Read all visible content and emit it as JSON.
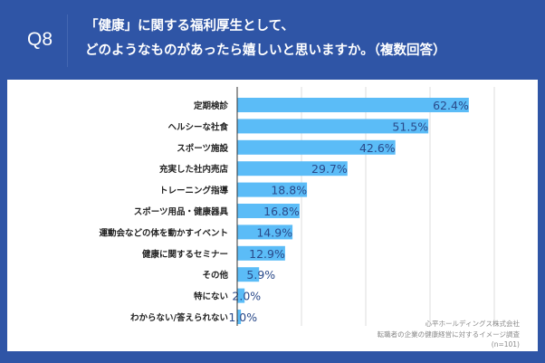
{
  "header": {
    "question_no": "Q8",
    "title_line1": "「健康」に関する福利厚生として、",
    "title_line2": "どのようなものがあったら嬉しいと思いますか。（複数回答）"
  },
  "colors": {
    "background": "#2f55a6",
    "bar": "#5bbcf7",
    "value_text": "#2a4a8a"
  },
  "source": {
    "company": "心平ホールディングス株式会社",
    "survey": "転職者の企業の健康経営に対するイメージ調査",
    "n": "(n=101)"
  },
  "chart_data": {
    "type": "bar",
    "orientation": "horizontal",
    "unit": "%",
    "categories": [
      "定期検診",
      "ヘルシーな社食",
      "スポーツ施設",
      "充実した社内売店",
      "トレーニング指導",
      "スポーツ用品・健康器具",
      "運動会などの体を動かすイベント",
      "健康に関するセミナー",
      "その他",
      "特にない",
      "わからない/答えられない"
    ],
    "values": [
      62.4,
      51.5,
      42.6,
      29.7,
      18.8,
      16.8,
      14.9,
      12.9,
      5.9,
      2.0,
      1.0
    ],
    "labels": [
      "62.4%",
      "51.5%",
      "42.6%",
      "29.7%",
      "18.8%",
      "16.8%",
      "14.9%",
      "12.9%",
      "5.9%",
      "2.0%",
      "1.0%"
    ],
    "grid": "vertical",
    "legend": "none"
  }
}
